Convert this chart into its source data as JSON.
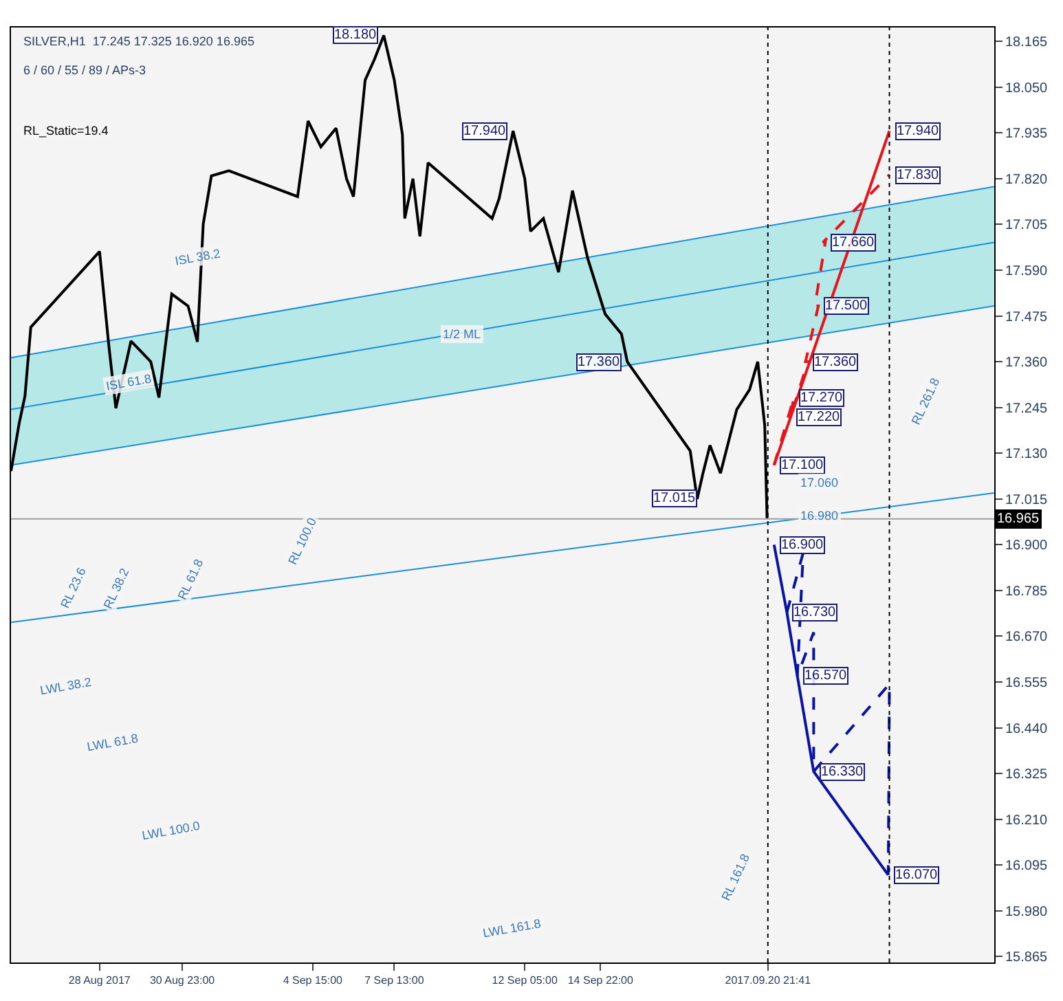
{
  "chart_data": {
    "type": "line",
    "title": "SILVER,H1  17.245 17.325 16.920 16.965",
    "subtitle": "6 / 60 / 55 / 89 / APs-3",
    "xlim": [
      "2017-08-24T20:00",
      "2017-09-29T00:00"
    ],
    "ylim": [
      15.85,
      18.2
    ],
    "xticks": [
      {
        "value": "2017-08-28",
        "label": "28 Aug 2017"
      },
      {
        "value": "2017-08-30T23:00",
        "label": "30 Aug 23:00"
      },
      {
        "value": "2017-09-04T15:00",
        "label": "4 Sep 15:00"
      },
      {
        "value": "2017-09-07T13:00",
        "label": "7 Sep 13:00"
      },
      {
        "value": "2017-09-12T05:00",
        "label": "12 Sep 05:00"
      },
      {
        "value": "2017-09-14T22:00",
        "label": "14 Sep 22:00"
      },
      {
        "value": "2017-09-20T21:41",
        "label": "2017.09.20 21:41"
      }
    ],
    "yticks": [
      15.865,
      {
        "value": 15.98,
        "label": "15.980"
      },
      16.095,
      {
        "value": 16.21,
        "label": "16.210"
      },
      16.325,
      {
        "value": 16.44,
        "label": "16.440"
      },
      16.555,
      {
        "value": 16.67,
        "label": "16.670"
      },
      16.785,
      {
        "value": 16.9,
        "label": "16.900"
      },
      17.015,
      {
        "value": 17.13,
        "label": "17.130"
      },
      17.245,
      {
        "value": 17.36,
        "label": "17.360"
      },
      17.475,
      {
        "value": 17.59,
        "label": "17.590"
      },
      17.705,
      {
        "value": 17.82,
        "label": "17.820"
      },
      17.935,
      {
        "value": 18.05,
        "label": "18.050"
      },
      18.165
    ],
    "grid": false,
    "marker": "none",
    "series": [
      {
        "color": "#1c8fd6",
        "x": [
          "2017-08-24T20:00",
          "2017-09-29T00:00"
        ],
        "values": [
          17.24,
          17.66
        ],
        "lower": [
          17.1,
          17.5
        ],
        "upper": [
          17.37,
          17.8
        ]
      },
      {
        "color": "#1c8fd6",
        "x": [
          "2017-08-24T20:00",
          "2017-09-29T00:00"
        ],
        "values": [
          17.37,
          17.8
        ]
      },
      {
        "color": "#1c8fd6",
        "x": [
          "2017-08-24T20:00",
          "2017-09-29T00:00"
        ],
        "values": [
          17.1,
          17.5
        ]
      },
      {
        "color": "#1c8fd6",
        "x": [
          "2017-08-24T20:00",
          "2017-09-29T00:00"
        ],
        "values": [
          16.705,
          17.03
        ]
      },
      {
        "color": "#000000",
        "x": [
          "2017-08-24T20:00",
          "2017-08-25T03:00",
          "2017-08-25T08:00",
          "2017-08-25T13:00",
          "2017-08-28T00:00",
          "2017-08-28T08:00",
          "2017-08-28T14:00",
          "2017-08-29T03:00",
          "2017-08-29T20:00",
          "2017-08-30T03:00",
          "2017-08-30T14:00",
          "2017-08-31T04:00",
          "2017-08-31T12:00",
          "2017-08-31T17:00",
          "2017-09-01T00:00",
          "2017-09-01T15:00",
          "2017-09-04T02:00",
          "2017-09-04T11:00",
          "2017-09-04T22:00",
          "2017-09-05T11:00",
          "2017-09-05T20:00",
          "2017-09-06T02:00",
          "2017-09-06T12:00",
          "2017-09-06T20:00",
          "2017-09-07T04:00",
          "2017-09-07T13:00",
          "2017-09-07T20:00",
          "2017-09-07T22:00",
          "2017-09-08T05:00",
          "2017-09-08T11:00",
          "2017-09-08T18:00",
          "2017-09-11T01:00",
          "2017-09-11T07:00",
          "2017-09-11T19:00",
          "2017-09-12T05:00",
          "2017-09-12T10:00",
          "2017-09-12T21:00",
          "2017-09-13T10:00",
          "2017-09-13T22:00",
          "2017-09-14T11:00",
          "2017-09-15T02:00",
          "2017-09-15T16:00",
          "2017-09-15T21:00",
          "2017-09-18T03:00",
          "2017-09-18T09:00",
          "2017-09-18T14:00",
          "2017-09-18T20:00",
          "2017-09-19T05:00",
          "2017-09-19T19:00",
          "2017-09-20T06:00",
          "2017-09-20T13:00",
          "2017-09-20T19:00",
          "2017-09-20T21:00"
        ],
        "values": [
          17.085,
          17.205,
          17.274,
          17.447,
          17.637,
          17.4,
          17.243,
          17.412,
          17.36,
          17.27,
          17.53,
          17.5,
          17.41,
          17.706,
          17.827,
          17.84,
          17.775,
          17.965,
          17.9,
          17.947,
          17.82,
          17.775,
          18.068,
          18.12,
          18.18,
          18.068,
          17.93,
          17.72,
          17.82,
          17.675,
          17.86,
          17.72,
          17.77,
          17.94,
          17.82,
          17.688,
          17.72,
          17.585,
          17.79,
          17.62,
          17.48,
          17.43,
          17.36,
          17.136,
          17.015,
          17.08,
          17.15,
          17.08,
          17.24,
          17.29,
          17.36,
          17.2,
          16.965
        ]
      },
      {
        "color": "#e8141c",
        "x": [
          "2017-09-21T03:00",
          "2017-09-25T06:00"
        ],
        "values": [
          17.1,
          17.94
        ]
      },
      {
        "color": "#e8141c",
        "line_style": "dashed",
        "x": [
          "2017-09-21T03:00",
          "2017-09-21T20:00",
          "2017-09-21T17:00",
          "2017-09-22T08:00",
          "2017-09-22T06:00",
          "2017-09-22T17:00",
          "2017-09-22T14:00",
          "2017-09-22T23:00",
          "2017-09-22T21:00",
          "2017-09-25T06:00"
        ],
        "values": [
          17.1,
          17.27,
          17.22,
          17.36,
          17.36,
          17.5,
          17.5,
          17.66,
          17.66,
          17.83
        ]
      },
      {
        "color": "#0a14a0",
        "x": [
          "2017-09-21T03:00",
          "2017-09-21T14:00",
          "2017-09-21T23:00",
          "2017-09-22T13:00",
          "2017-09-25T05:00"
        ],
        "values": [
          16.9,
          16.73,
          16.57,
          16.33,
          16.07
        ]
      },
      {
        "color": "#0a14a0",
        "line_style": "dashed",
        "x": [
          "2017-09-21T14:00",
          "2017-09-22T04:00",
          "2017-09-21T23:00",
          "2017-09-22T13:00",
          "2017-09-22T13:00",
          "2017-09-25T06:00",
          "2017-09-25T05:00"
        ],
        "values": [
          16.73,
          16.88,
          16.57,
          16.68,
          16.33,
          16.55,
          16.07
        ]
      }
    ],
    "ref_lines": [
      {
        "axis": "y",
        "value": 16.965,
        "label": "16.965",
        "color": "#a0a0a0"
      },
      {
        "axis": "x",
        "value": "2017-09-20T21:41",
        "line_style": "dotted",
        "color": "#000000"
      },
      {
        "axis": "x",
        "value": "2017-09-25T06:00",
        "line_style": "dotted",
        "color": "#000000"
      }
    ],
    "annotations": [
      "RL_Static=19.4",
      {
        "text": "18.180",
        "x": "2017-09-07T04:00",
        "y": 18.18
      },
      {
        "text": "17.940",
        "x": "2017-09-11T19:00",
        "y": 17.94
      },
      {
        "text": "17.360",
        "x": "2017-09-15T21:00",
        "y": 17.36
      },
      {
        "text": "17.015",
        "x": "2017-09-18T14:00",
        "y": 17.015
      },
      {
        "text": "17.940",
        "x": "2017-09-25T06:00",
        "y": 17.94
      },
      {
        "text": "17.830",
        "x": "2017-09-25T06:00",
        "y": 17.83
      },
      {
        "text": "17.660",
        "x": "2017-09-22T23:00",
        "y": 17.66
      },
      {
        "text": "17.500",
        "x": "2017-09-22T17:00",
        "y": 17.5
      },
      {
        "text": "17.360",
        "x": "2017-09-22T08:00",
        "y": 17.36
      },
      {
        "text": "17.270",
        "x": "2017-09-21T20:00",
        "y": 17.27
      },
      {
        "text": "17.220",
        "x": "2017-09-21T17:00",
        "y": 17.22
      },
      {
        "text": "17.100",
        "x": "2017-09-21T03:00",
        "y": 17.1
      },
      "17.060",
      "16.980",
      {
        "text": "16.900",
        "x": "2017-09-21T03:00",
        "y": 16.9
      },
      {
        "text": "16.730",
        "x": "2017-09-21T14:00",
        "y": 16.73
      },
      {
        "text": "16.570",
        "x": "2017-09-21T23:00",
        "y": 16.57
      },
      {
        "text": "16.330",
        "x": "2017-09-22T13:00",
        "y": 16.33
      },
      {
        "text": "16.070",
        "x": "2017-09-25T05:00",
        "y": 16.07
      },
      "ISL 38.2",
      "ISL 61.8",
      "1/2 ML",
      "RL 23.6",
      "RL 38.2",
      "RL 61.8",
      "RL 100.0",
      "RL 261.8",
      "RL 161.8",
      "LWL 38.2",
      "LWL 61.8",
      "LWL 100.0",
      "LWL 161.8"
    ]
  }
}
